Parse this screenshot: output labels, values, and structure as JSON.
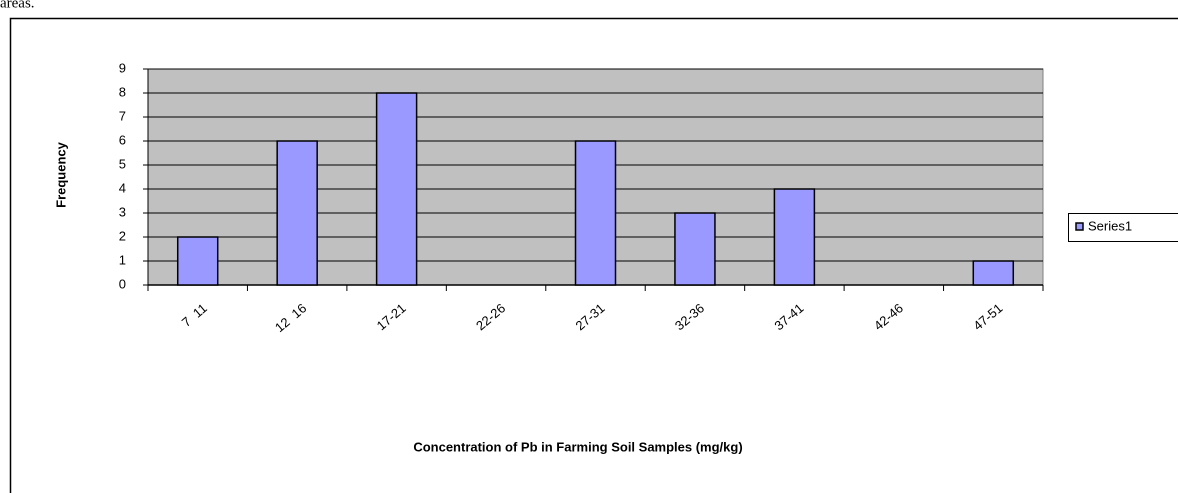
{
  "page_text": "areas.",
  "chart_data": {
    "type": "bar",
    "x_label": "Concentration of Pb in Farming Soil Samples (mg/kg)",
    "y_label": "Frequency",
    "categories": [
      "7  11",
      "12  16",
      "17-21",
      "22-26",
      "27-31",
      "32-36",
      "37-41",
      "42-46",
      "47-51"
    ],
    "series": [
      {
        "name": "Series1",
        "color": "#9999ff",
        "values": [
          2,
          6,
          8,
          0,
          6,
          3,
          4,
          0,
          1
        ]
      }
    ],
    "ylim": [
      0,
      9
    ],
    "yticks": [
      0,
      1,
      2,
      3,
      4,
      5,
      6,
      7,
      8,
      9
    ],
    "grid": true,
    "legend": "right",
    "plot_background": "#c0c0c0"
  }
}
